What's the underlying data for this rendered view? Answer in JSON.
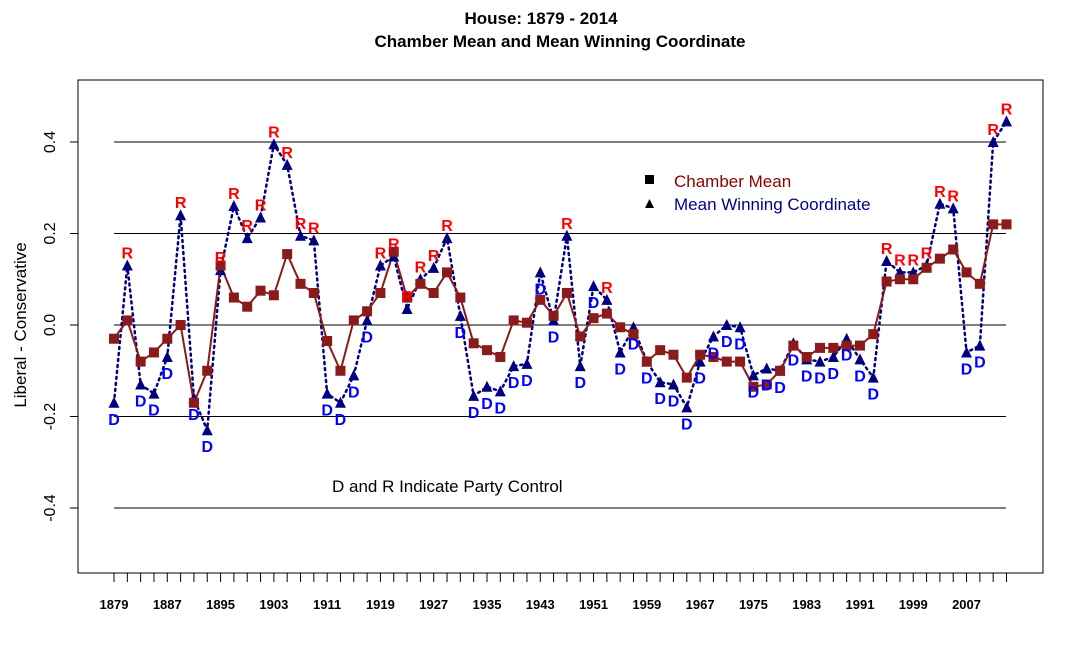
{
  "chart_data": {
    "type": "line",
    "title": "House: 1879 - 2014",
    "subtitle": "Chamber Mean and Mean Winning Coordinate",
    "xlabel": "",
    "ylabel": "Liberal - Conservative",
    "ylim": [
      -0.55,
      0.52
    ],
    "yticks": [
      -0.4,
      -0.2,
      0.0,
      0.2,
      0.4
    ],
    "ytick_labels": [
      "-0.4",
      "-0.2",
      "0.0",
      "0.2",
      "0.4"
    ],
    "hlines": [
      -0.4,
      -0.2,
      0.0,
      0.2,
      0.4
    ],
    "xtick_labels": [
      "1879",
      "1887",
      "1895",
      "1903",
      "1911",
      "1919",
      "1927",
      "1935",
      "1943",
      "1951",
      "1959",
      "1967",
      "1975",
      "1983",
      "1991",
      "1999",
      "2007"
    ],
    "legend": {
      "placement": "top-right",
      "entries": [
        {
          "label": "Chamber Mean",
          "marker": "square",
          "color": "#8B0000"
        },
        {
          "label": "Mean Winning Coordinate",
          "marker": "triangle",
          "color": "#00008B"
        }
      ]
    },
    "annotation": "D and R Indicate Party Control",
    "colors": {
      "chamber_mean": "#8B1A1A",
      "winning_coordinate": "#00007F",
      "party_R": "#FF0000",
      "party_D": "#0000FF"
    },
    "x": [
      1879,
      1881,
      1883,
      1885,
      1887,
      1889,
      1891,
      1893,
      1895,
      1897,
      1899,
      1901,
      1903,
      1905,
      1907,
      1909,
      1911,
      1913,
      1915,
      1917,
      1919,
      1921,
      1923,
      1925,
      1927,
      1929,
      1931,
      1933,
      1935,
      1937,
      1939,
      1941,
      1943,
      1945,
      1947,
      1949,
      1951,
      1953,
      1955,
      1957,
      1959,
      1961,
      1963,
      1965,
      1967,
      1969,
      1971,
      1973,
      1975,
      1977,
      1979,
      1981,
      1983,
      1985,
      1987,
      1989,
      1991,
      1993,
      1995,
      1997,
      1999,
      2001,
      2003,
      2005,
      2007,
      2009,
      2011,
      2013
    ],
    "series": [
      {
        "name": "Chamber Mean",
        "values": [
          -0.03,
          0.01,
          -0.08,
          -0.06,
          -0.03,
          0.0,
          -0.17,
          -0.1,
          0.13,
          0.06,
          0.04,
          0.075,
          0.065,
          0.155,
          0.09,
          0.07,
          -0.035,
          -0.1,
          0.01,
          0.03,
          0.07,
          0.16,
          0.06,
          0.09,
          0.07,
          0.115,
          0.06,
          -0.04,
          -0.055,
          -0.07,
          0.01,
          0.005,
          0.055,
          0.02,
          0.07,
          -0.025,
          0.015,
          0.025,
          -0.005,
          -0.02,
          -0.08,
          -0.055,
          -0.065,
          -0.115,
          -0.065,
          -0.07,
          -0.08,
          -0.08,
          -0.135,
          -0.13,
          -0.1,
          -0.045,
          -0.07,
          -0.05,
          -0.05,
          -0.045,
          -0.045,
          -0.02,
          0.095,
          0.1,
          0.1,
          0.125,
          0.145,
          0.165,
          0.115,
          0.09,
          0.22,
          0.22
        ]
      },
      {
        "name": "Mean Winning Coordinate",
        "values": [
          -0.17,
          0.13,
          -0.13,
          -0.15,
          -0.07,
          0.24,
          -0.16,
          -0.23,
          0.12,
          0.26,
          0.19,
          0.235,
          0.395,
          0.35,
          0.195,
          0.185,
          -0.15,
          -0.17,
          -0.11,
          0.01,
          0.13,
          0.15,
          0.035,
          0.1,
          0.125,
          0.19,
          0.02,
          -0.155,
          -0.135,
          -0.145,
          -0.09,
          -0.085,
          0.115,
          0.01,
          0.195,
          -0.09,
          0.085,
          0.055,
          -0.06,
          -0.005,
          -0.08,
          -0.125,
          -0.13,
          -0.18,
          -0.08,
          -0.025,
          0.0,
          -0.005,
          -0.11,
          -0.095,
          -0.1,
          -0.04,
          -0.075,
          -0.08,
          -0.07,
          -0.03,
          -0.075,
          -0.115,
          0.14,
          0.115,
          0.115,
          0.13,
          0.265,
          0.255,
          -0.06,
          -0.045,
          0.4,
          0.445
        ]
      }
    ],
    "party_control": [
      "D",
      "R",
      "D",
      "D",
      "D",
      "R",
      "D",
      "D",
      "R",
      "R",
      "R",
      "R",
      "R",
      "R",
      "R",
      "R",
      "D",
      "D",
      "D",
      "D",
      "R",
      "R",
      "R",
      "R",
      "R",
      "R",
      "D",
      "D",
      "D",
      "D",
      "D",
      "D",
      "D",
      "D",
      "R",
      "D",
      "D",
      "R",
      "D",
      "D",
      "D",
      "D",
      "D",
      "D",
      "D",
      "D",
      "D",
      "D",
      "D",
      "D",
      "D",
      "D",
      "D",
      "D",
      "D",
      "D",
      "D",
      "D",
      "R",
      "R",
      "R",
      "R",
      "R",
      "R",
      "D",
      "D",
      "R",
      "R"
    ]
  }
}
